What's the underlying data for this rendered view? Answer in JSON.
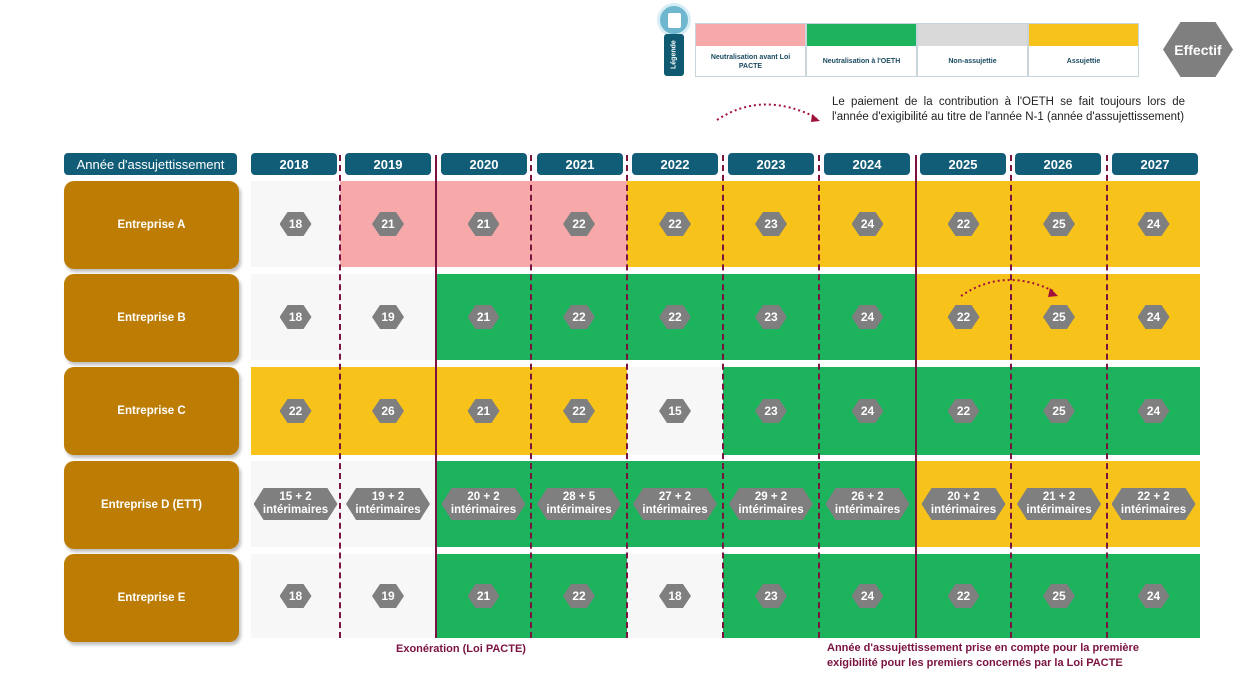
{
  "legend": {
    "tab_label": "Légende",
    "items": [
      {
        "label": "Neutralisation avant Loi PACTE",
        "color": "#f7a8a8"
      },
      {
        "label": "Neutralisation à l'OETH",
        "color": "#1db35c"
      },
      {
        "label": "Non-assujettie",
        "color": "#d9d9d9"
      },
      {
        "label": "Assujettie",
        "color": "#f7c21a"
      }
    ]
  },
  "effectif_label": "Effectif",
  "note": "Le paiement de la contribution à l'OETH se fait toujours lors de l'année d'exigibilité au titre de l'année N-1 (année d'assujettissement)",
  "header": {
    "first": "Année d'assujettissement",
    "years": [
      "2018",
      "2019",
      "2020",
      "2021",
      "2022",
      "2023",
      "2024",
      "2025",
      "2026",
      "2027"
    ]
  },
  "colors": {
    "pink": "#f7a8a8",
    "green": "#1db35c",
    "white": "#f7f7f7",
    "yellow": "#f7c21a"
  },
  "rows": [
    {
      "name": "Entreprise A",
      "cells": [
        {
          "v": "18",
          "c": "white"
        },
        {
          "v": "21",
          "c": "pink"
        },
        {
          "v": "21",
          "c": "pink"
        },
        {
          "v": "22",
          "c": "pink"
        },
        {
          "v": "22",
          "c": "yellow"
        },
        {
          "v": "23",
          "c": "yellow"
        },
        {
          "v": "24",
          "c": "yellow"
        },
        {
          "v": "22",
          "c": "yellow"
        },
        {
          "v": "25",
          "c": "yellow"
        },
        {
          "v": "24",
          "c": "yellow"
        }
      ]
    },
    {
      "name": "Entreprise B",
      "cells": [
        {
          "v": "18",
          "c": "white"
        },
        {
          "v": "19",
          "c": "white"
        },
        {
          "v": "21",
          "c": "green"
        },
        {
          "v": "22",
          "c": "green"
        },
        {
          "v": "22",
          "c": "green"
        },
        {
          "v": "23",
          "c": "green"
        },
        {
          "v": "24",
          "c": "green"
        },
        {
          "v": "22",
          "c": "yellow"
        },
        {
          "v": "25",
          "c": "yellow"
        },
        {
          "v": "24",
          "c": "yellow"
        }
      ]
    },
    {
      "name": "Entreprise C",
      "cells": [
        {
          "v": "22",
          "c": "yellow"
        },
        {
          "v": "26",
          "c": "yellow"
        },
        {
          "v": "21",
          "c": "yellow"
        },
        {
          "v": "22",
          "c": "yellow"
        },
        {
          "v": "15",
          "c": "white"
        },
        {
          "v": "23",
          "c": "green"
        },
        {
          "v": "24",
          "c": "green"
        },
        {
          "v": "22",
          "c": "green"
        },
        {
          "v": "25",
          "c": "green"
        },
        {
          "v": "24",
          "c": "green"
        }
      ]
    },
    {
      "name": "Entreprise D (ETT)",
      "cells": [
        {
          "v": "15 + 2",
          "v2": "intérimaires",
          "c": "white"
        },
        {
          "v": "19 + 2",
          "v2": "intérimaires",
          "c": "white"
        },
        {
          "v": "20 + 2",
          "v2": "intérimaires",
          "c": "green"
        },
        {
          "v": "28 + 5",
          "v2": "intérimaires",
          "c": "green"
        },
        {
          "v": "27 + 2",
          "v2": "intérimaires",
          "c": "green"
        },
        {
          "v": "29 + 2",
          "v2": "intérimaires",
          "c": "green"
        },
        {
          "v": "26 + 2",
          "v2": "intérimaires",
          "c": "green"
        },
        {
          "v": "20 + 2",
          "v2": "intérimaires",
          "c": "yellow"
        },
        {
          "v": "21 + 2",
          "v2": "intérimaires",
          "c": "yellow"
        },
        {
          "v": "22 + 2",
          "v2": "intérimaires",
          "c": "yellow"
        }
      ]
    },
    {
      "name": "Entreprise E",
      "cells": [
        {
          "v": "18",
          "c": "white"
        },
        {
          "v": "19",
          "c": "white"
        },
        {
          "v": "21",
          "c": "green"
        },
        {
          "v": "22",
          "c": "green"
        },
        {
          "v": "18",
          "c": "white"
        },
        {
          "v": "23",
          "c": "green"
        },
        {
          "v": "24",
          "c": "green"
        },
        {
          "v": "22",
          "c": "green"
        },
        {
          "v": "25",
          "c": "green"
        },
        {
          "v": "24",
          "c": "green"
        }
      ]
    }
  ],
  "footnotes": {
    "exoneration": "Exonération (Loi PACTE)",
    "annee_line1": "Année d'assujettissement prise en compte pour la première",
    "annee_line2": "exigibilité pour les premiers concernés  par la Loi PACTE"
  }
}
